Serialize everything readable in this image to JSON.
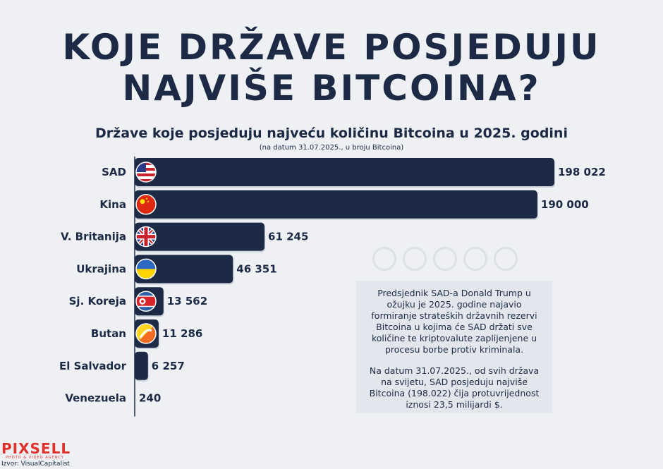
{
  "title_line1": "KOJE DRŽAVE POSJEDUJU",
  "title_line2": "NAJVIŠE BITCOINA?",
  "brand": {
    "name": "PIXSELL",
    "tagline": "PHOTO & VIDEO AGENCY"
  },
  "source": "Izvor: VisualCapitalist",
  "info": {
    "paragraph1": "Predsjednik SAD-a Donald Trump u ožujku je 2025. godine najavio formiranje strateških državnih rezervi Bitcoina u kojima će SAD držati sve količine te kriptovalute zaplijenjene u procesu borbe protiv kriminala.",
    "paragraph2": "Na datum 31.07.2025., od svih država na svijetu, SAD posjeduju najviše Bitcoina (198.022) čija protuvrijednost iznosi 23,5 milijardi $."
  },
  "colors": {
    "bar": "#1c2a45",
    "text": "#1c2a45",
    "background": "#eef0f4",
    "brand": "#e0312b"
  },
  "chart_data": {
    "type": "bar",
    "orientation": "horizontal",
    "title": "Države koje posjeduju najveću količinu Bitcoina u 2025. godini",
    "subtitle": "(na datum 31.07.2025., u broju Bitcoina)",
    "categories": [
      "SAD",
      "Kina",
      "V. Britanija",
      "Ukrajina",
      "Sj. Koreja",
      "Butan",
      "El Salvador",
      "Venezuela"
    ],
    "values": [
      198022,
      190000,
      61245,
      46351,
      13562,
      11286,
      6257,
      240
    ],
    "value_labels": [
      "198 022",
      "190 000",
      "61 245",
      "46 351",
      "13 562",
      "11 286",
      "6 257",
      "240"
    ],
    "flags": [
      "us-flag-icon",
      "china-flag-icon",
      "uk-flag-icon",
      "ukraine-flag-icon",
      "north-korea-flag-icon",
      "bhutan-flag-icon",
      "",
      ""
    ],
    "grid": false,
    "legend": "none"
  }
}
